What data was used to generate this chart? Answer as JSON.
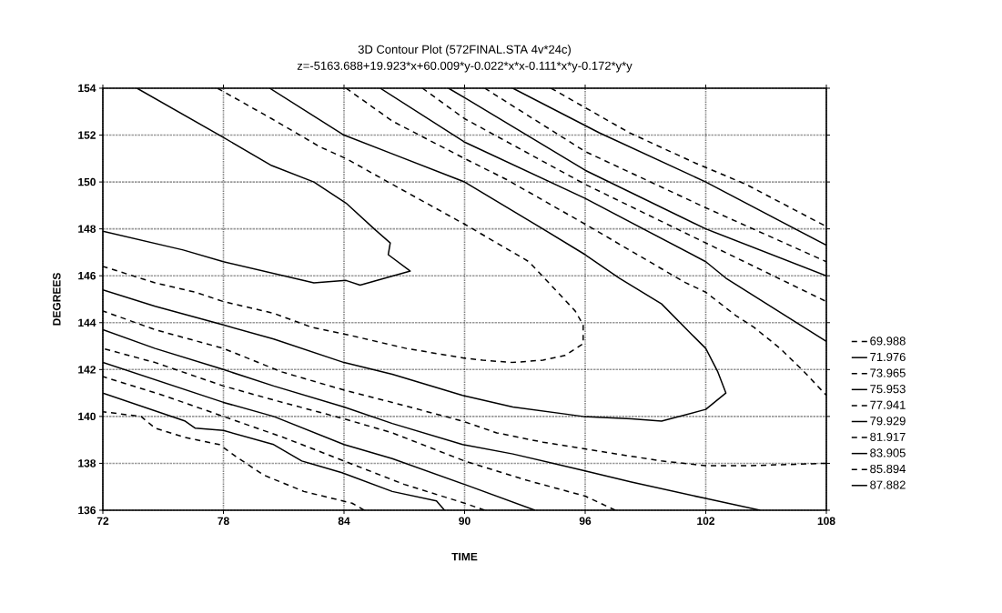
{
  "chart_data": {
    "type": "line",
    "title": "3D Contour Plot (572FINAL.STA 4v*24c)",
    "subtitle": "z=-5163.688+19.923*x+60.009*y-0.022*x*x-0.111*x*y-0.172*y*y",
    "xlabel": "TIME",
    "ylabel": "DEGREES",
    "xlim": [
      72,
      108
    ],
    "xticks": [
      72,
      78,
      84,
      90,
      96,
      102,
      108
    ],
    "ylim": [
      136,
      154
    ],
    "yticks": [
      136,
      138,
      140,
      142,
      144,
      146,
      148,
      150,
      152,
      154
    ],
    "grid": true,
    "legend": "right",
    "marker": "none",
    "series": [
      {
        "name": "69.988",
        "color": "#000000",
        "line_style": "dashed",
        "x": [
          94.3,
          98.2,
          101.5,
          104,
          108
        ],
        "values": [
          154,
          152.1,
          150.8,
          149.9,
          148.1
        ]
      },
      {
        "color": "#000000",
        "line_style": "dashed",
        "x": [
          85,
          84.4,
          82,
          80,
          78.6,
          77.8,
          76.1,
          74.6,
          73.9,
          72
        ],
        "values": [
          136,
          136.3,
          136.8,
          137.5,
          138.3,
          138.8,
          139.1,
          139.5,
          140.0,
          140.2
        ]
      },
      {
        "name": "71.976",
        "color": "#000000",
        "line_style": "solid",
        "x": [
          92.4,
          96.7,
          102,
          108
        ],
        "values": [
          154,
          152.1,
          150.0,
          147.3
        ]
      },
      {
        "color": "#000000",
        "line_style": "solid",
        "x": [
          89,
          88.6,
          86.4,
          83.9,
          81.9,
          80.5,
          78,
          76.6,
          76.1,
          72
        ],
        "values": [
          136,
          136.4,
          136.8,
          137.6,
          138.1,
          138.8,
          139.4,
          139.5,
          139.8,
          141.0
        ]
      },
      {
        "name": "73.965",
        "color": "#000000",
        "line_style": "dashed",
        "x": [
          91,
          96,
          102,
          108
        ],
        "values": [
          154,
          151.3,
          148.9,
          146.6
        ]
      },
      {
        "color": "#000000",
        "line_style": "dashed",
        "x": [
          91,
          90,
          87,
          84,
          81,
          78,
          75,
          72
        ],
        "values": [
          136,
          136.3,
          137.1,
          138.1,
          139.1,
          140.0,
          140.9,
          141.7
        ]
      },
      {
        "name": "75.953",
        "color": "#000000",
        "line_style": "solid",
        "x": [
          89.2,
          90,
          96,
          102,
          108
        ],
        "values": [
          154,
          153.6,
          150.5,
          148.0,
          146.0
        ]
      },
      {
        "color": "#000000",
        "line_style": "solid",
        "x": [
          93.5,
          90,
          86.4,
          84,
          80.5,
          78,
          72
        ],
        "values": [
          136,
          137.1,
          138.2,
          138.8,
          140.0,
          140.6,
          142.3
        ]
      },
      {
        "name": "77.941",
        "color": "#000000",
        "line_style": "dashed",
        "x": [
          87.9,
          90,
          96,
          102,
          108
        ],
        "values": [
          154,
          152.7,
          149.9,
          147.4,
          144.9
        ]
      },
      {
        "color": "#000000",
        "line_style": "dashed",
        "x": [
          97.5,
          96,
          93,
          90,
          86.4,
          84,
          80.5,
          78,
          74.6,
          72
        ],
        "values": [
          136,
          136.6,
          137.3,
          138.1,
          139.3,
          139.9,
          140.7,
          141.3,
          142.3,
          142.9
        ]
      },
      {
        "name": "79.929",
        "color": "#000000",
        "line_style": "solid",
        "x": [
          85.8,
          90,
          96,
          102,
          103,
          108
        ],
        "values": [
          154,
          151.7,
          149.3,
          146.6,
          145.9,
          143.2
        ]
      },
      {
        "color": "#000000",
        "line_style": "solid",
        "x": [
          104.7,
          102,
          98.3,
          95.9,
          92.4,
          89.9,
          86.4,
          84,
          80.5,
          78,
          74.6,
          72
        ],
        "values": [
          136,
          136.5,
          137.2,
          137.7,
          138.4,
          138.8,
          139.7,
          140.4,
          141.3,
          142.0,
          142.9,
          143.7
        ]
      },
      {
        "name": "81.917",
        "color": "#000000",
        "line_style": "dashed",
        "x": [
          84.1,
          86.4,
          90,
          92.1,
          96,
          101,
          102,
          103.5,
          104.4,
          105.7,
          106.9,
          108
        ],
        "values": [
          154,
          152.6,
          151.0,
          150.1,
          148.2,
          145.7,
          145.3,
          144.3,
          143.8,
          142.9,
          141.9,
          140.9
        ]
      },
      {
        "color": "#000000",
        "line_style": "dashed",
        "x": [
          108,
          104.2,
          102,
          99.8,
          98.3,
          96.1,
          93.9,
          91.6,
          89.9,
          86.4,
          84.1,
          80.9,
          78,
          74.6,
          72
        ],
        "values": [
          138.0,
          137.9,
          137.9,
          138.1,
          138.3,
          138.6,
          138.9,
          139.3,
          139.8,
          140.6,
          141.1,
          141.9,
          142.9,
          143.7,
          144.5
        ]
      },
      {
        "name": "83.905",
        "color": "#000000",
        "line_style": "solid",
        "x": [
          80.3,
          84,
          86.4,
          90,
          93.7,
          96,
          97.7,
          99.8,
          101.3,
          102,
          102.6,
          103,
          102,
          99.8,
          98.3,
          95.9,
          92.4,
          89.9,
          86.4,
          84,
          80.5,
          78,
          74.6,
          72
        ],
        "values": [
          154,
          152,
          151.2,
          150.0,
          148.1,
          146.9,
          145.9,
          144.8,
          143.5,
          142.9,
          141.9,
          141.0,
          140.3,
          139.8,
          139.9,
          140.0,
          140.4,
          140.9,
          141.8,
          142.3,
          143.3,
          143.9,
          144.7,
          145.4
        ]
      },
      {
        "name": "85.894",
        "color": "#000000",
        "line_style": "dashed",
        "x": [
          77.7,
          80.4,
          82.8,
          84.1,
          86.4,
          90,
          93.2,
          94.3,
          95.5,
          95.9,
          95.9,
          95.0,
          93.9,
          92.4,
          90.9,
          89.9,
          87.1,
          84.1,
          82.4,
          80.5,
          78,
          76.6,
          74.6,
          72
        ],
        "values": [
          154,
          152.7,
          151.5,
          151.0,
          149.9,
          148.2,
          146.6,
          145.6,
          144.5,
          143.9,
          143.1,
          142.6,
          142.4,
          142.3,
          142.4,
          142.5,
          142.9,
          143.5,
          143.8,
          144.4,
          144.9,
          145.3,
          145.7,
          146.4
        ]
      },
      {
        "name": "87.882",
        "color": "#000000",
        "line_style": "solid",
        "x": [
          73.7,
          78,
          80.4,
          82.5,
          84.1,
          85.5,
          86.3,
          86.2,
          87.3,
          84.8,
          84.1,
          82.5,
          78,
          76,
          72
        ],
        "values": [
          154,
          151.9,
          150.7,
          150.0,
          149.1,
          148.0,
          147.4,
          146.9,
          146.2,
          145.6,
          145.8,
          145.7,
          146.6,
          147.1,
          147.9
        ]
      }
    ]
  }
}
